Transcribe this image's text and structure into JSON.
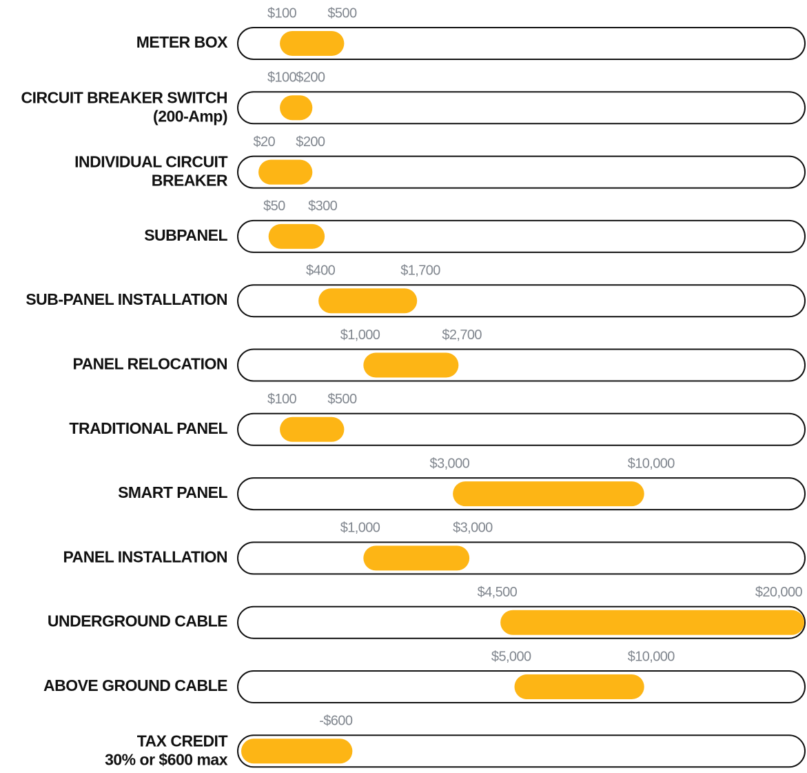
{
  "chart_data": {
    "type": "range",
    "categories": [
      [
        "METER BOX"
      ],
      [
        "CIRCUIT BREAKER SWITCH",
        "(200-Amp)"
      ],
      [
        "INDIVIDUAL CIRCUIT",
        "BREAKER"
      ],
      [
        "SUBPANEL"
      ],
      [
        "SUB-PANEL INSTALLATION"
      ],
      [
        "PANEL RELOCATION"
      ],
      [
        "TRADITIONAL PANEL"
      ],
      [
        "SMART PANEL"
      ],
      [
        "PANEL INSTALLATION"
      ],
      [
        "UNDERGROUND CABLE"
      ],
      [
        "ABOVE GROUND CABLE"
      ],
      [
        "TAX CREDIT",
        "30% or $600 max"
      ]
    ],
    "low": [
      100,
      100,
      20,
      50,
      400,
      1000,
      100,
      3000,
      1000,
      4500,
      5000,
      null
    ],
    "low_labels": [
      "$100",
      "$100",
      "$20",
      "$50",
      "$400",
      "$1,000",
      "$100",
      "$3,000",
      "$1,000",
      "$4,500",
      "$5,000",
      null
    ],
    "high": [
      500,
      200,
      200,
      300,
      1700,
      2700,
      500,
      10000,
      3000,
      20000,
      10000,
      -600
    ],
    "high_labels": [
      "$500",
      "$200",
      "$200",
      "$300",
      "$1,700",
      "$2,700",
      "$500",
      "$10,000",
      "$3,000",
      "$20,000",
      "$10,000",
      "-$600"
    ],
    "xlim": [
      0,
      20000
    ],
    "scale": "sqrt",
    "color": "#fdb515"
  }
}
